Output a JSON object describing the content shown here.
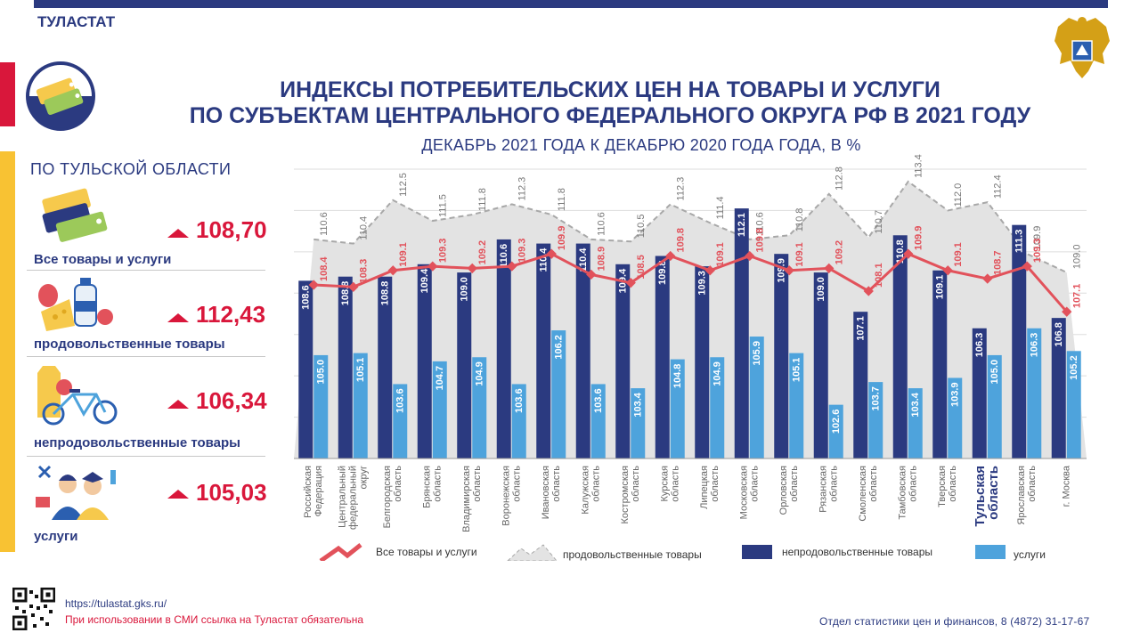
{
  "brand": "ТУЛАСТАТ",
  "title_line1": "ИНДЕКСЫ ПОТРЕБИТЕЛЬСКИХ ЦЕН НА ТОВАРЫ И УСЛУГИ",
  "title_line2": "ПО СУБЪЕКТАМ ЦЕНТРАЛЬНОГО ФЕДЕРАЛЬНОГО ОКРУГА РФ В 2021 ГОДУ",
  "subtitle": "ДЕКАБРЬ 2021 ГОДА К ДЕКАБРЮ 2020 ГОДА ГОДА, В %",
  "region_panel": {
    "title": "ПО ТУЛЬСКОЙ ОБЛАСТИ",
    "items": [
      {
        "label": "Все товары и услуги",
        "value": "108,70",
        "icon": "price-tags-icon"
      },
      {
        "label": "продовольственные товары",
        "value": "112,43",
        "icon": "food-products-icon"
      },
      {
        "label": "непродовольственные товары",
        "value": "106,34",
        "icon": "bicycle-clothes-icon"
      },
      {
        "label": "услуги",
        "value": "105,03",
        "icon": "services-people-icon"
      }
    ]
  },
  "colors": {
    "dark_blue": "#2b3a80",
    "light_blue": "#4ea3dc",
    "red": "#e2525b",
    "gray_area": "#e3e3e3",
    "accent_red": "#d9173b",
    "yellow": "#f8c233"
  },
  "chart_data": {
    "type": "bar",
    "categories": [
      [
        "Российская",
        "Федерация"
      ],
      [
        "Центральный",
        "федеральный",
        "округ"
      ],
      [
        "Белгородская",
        "область"
      ],
      [
        "Брянская",
        "область"
      ],
      [
        "Владимирская",
        "область"
      ],
      [
        "Воронежская",
        "область"
      ],
      [
        "Ивановская",
        "область"
      ],
      [
        "Калужская",
        "область"
      ],
      [
        "Костромская",
        "область"
      ],
      [
        "Курская",
        "область"
      ],
      [
        "Липецкая",
        "область"
      ],
      [
        "Московская",
        "область"
      ],
      [
        "Орловская",
        "область"
      ],
      [
        "Рязанская",
        "область"
      ],
      [
        "Смоленская",
        "область"
      ],
      [
        "Тамбовская",
        "область"
      ],
      [
        "Тверская",
        "область"
      ],
      [
        "Тульская",
        "область"
      ],
      [
        "Ярославская",
        "область"
      ],
      [
        "г. Москва"
      ]
    ],
    "highlight_category_index": 17,
    "series": [
      {
        "name": "Все товары и услуги",
        "kind": "line",
        "color": "#e2525b",
        "values": [
          108.4,
          108.3,
          109.1,
          109.3,
          109.2,
          109.3,
          109.9,
          108.9,
          108.5,
          109.8,
          109.1,
          109.8,
          109.1,
          109.2,
          108.1,
          109.9,
          109.1,
          108.7,
          109.3,
          107.1
        ],
        "labels": [
          "108.4",
          "108.3",
          "109.1",
          "109.3",
          "109.2",
          "109.3",
          "109.9",
          "108.9",
          "108.5",
          "109.8",
          "109.1",
          "109.8",
          "109.1",
          "109.2",
          "108.1",
          "109.9",
          "109.1",
          "108.7",
          "109.3",
          "107.1"
        ]
      },
      {
        "name": "продовольственные товары",
        "kind": "area",
        "color": "#e3e3e3",
        "values": [
          110.6,
          110.4,
          112.5,
          111.5,
          111.8,
          112.3,
          111.8,
          110.6,
          110.5,
          112.3,
          111.4,
          110.6,
          110.8,
          112.8,
          110.7,
          113.4,
          112.0,
          112.4,
          109.9,
          109.0
        ],
        "labels": [
          "110.6",
          "110.4",
          "112.5",
          "111.5",
          "111.8",
          "112.3",
          "111.8",
          "110.6",
          "110.5",
          "112.3",
          "111.4",
          "110.6",
          "110.8",
          "112.8",
          "110.7",
          "113.4",
          "112.0",
          "112.4",
          "109.9",
          "109.0"
        ]
      },
      {
        "name": "непродовольственные товары",
        "kind": "bar",
        "color": "#2b3a80",
        "values": [
          108.6,
          108.8,
          108.8,
          109.4,
          109.0,
          110.6,
          110.4,
          110.4,
          109.4,
          109.8,
          109.3,
          112.1,
          109.9,
          109.0,
          107.1,
          110.8,
          109.1,
          106.3,
          111.3,
          106.8
        ],
        "labels": [
          "108.6",
          "108.8",
          "108.8",
          "109.4",
          "109.0",
          "110.6",
          "110.4",
          "110.4",
          "109.4",
          "109.8",
          "109.3",
          "112.1",
          "109.9",
          "109.0",
          "107.1",
          "110.8",
          "109.1",
          "106.3",
          "111.3",
          "106.8"
        ]
      },
      {
        "name": "услуги",
        "kind": "bar",
        "color": "#4ea3dc",
        "values": [
          105.0,
          105.1,
          103.6,
          104.7,
          104.9,
          103.6,
          106.2,
          103.6,
          103.4,
          104.8,
          104.9,
          105.9,
          105.1,
          102.6,
          103.7,
          103.4,
          103.9,
          105.0,
          106.3,
          105.2
        ],
        "labels": [
          "105.0",
          "105.1",
          "103.6",
          "104.7",
          "104.9",
          "103.6",
          "106.2",
          "103.6",
          "103.4",
          "104.8",
          "104.9",
          "105.9",
          "105.1",
          "102.6",
          "103.7",
          "103.4",
          "103.9",
          "105.0",
          "106.3",
          "105.2"
        ]
      }
    ],
    "ylim": [
      100,
      114
    ],
    "grid": true,
    "legend": "bottom"
  },
  "footer": {
    "site": "https://tulastat.gks.ru/",
    "notice": "При использовании  в СМИ ссылка на Туластат  обязательна",
    "contact": "Отдел  статистики  цен и финансов,  8 (4872) 31-17-67"
  }
}
